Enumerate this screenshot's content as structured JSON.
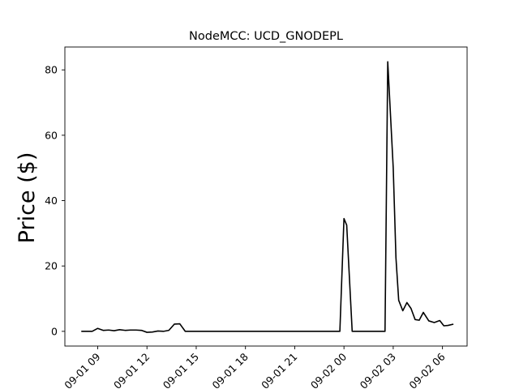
{
  "chart_data": {
    "type": "line",
    "title": "NodeMCC: UCD_GNODEPL",
    "xlabel": "",
    "ylabel": "Price ($)",
    "xlim": [
      "2019-09-01 07:00",
      "2019-09-02 07:30"
    ],
    "ylim": [
      -4.5,
      87
    ],
    "yticks": [
      0,
      20,
      40,
      60,
      80
    ],
    "xticks": [
      {
        "at": "2019-09-01 09:00",
        "label": "09-01 09"
      },
      {
        "at": "2019-09-01 12:00",
        "label": "09-01 12"
      },
      {
        "at": "2019-09-01 15:00",
        "label": "09-01 15"
      },
      {
        "at": "2019-09-01 18:00",
        "label": "09-01 18"
      },
      {
        "at": "2019-09-01 21:00",
        "label": "09-01 21"
      },
      {
        "at": "2019-09-02 00:00",
        "label": "09-02 00"
      },
      {
        "at": "2019-09-02 03:00",
        "label": "09-02 03"
      },
      {
        "at": "2019-09-02 06:00",
        "label": "09-02 06"
      }
    ],
    "grid": false,
    "legend": "none",
    "line_color": "#000000",
    "series": [
      {
        "x": [
          "2019-09-01 08:00",
          "2019-09-01 08:20",
          "2019-09-01 08:40",
          "2019-09-01 09:00",
          "2019-09-01 09:20",
          "2019-09-01 09:40",
          "2019-09-01 10:00",
          "2019-09-01 10:20",
          "2019-09-01 10:40",
          "2019-09-01 11:00",
          "2019-09-01 11:20",
          "2019-09-01 11:40",
          "2019-09-01 12:00",
          "2019-09-01 12:20",
          "2019-09-01 12:40",
          "2019-09-01 13:00",
          "2019-09-01 13:20",
          "2019-09-01 13:40",
          "2019-09-01 14:00",
          "2019-09-01 14:20",
          "2019-09-01 14:40",
          "2019-09-01 15:00",
          "2019-09-01 18:00",
          "2019-09-01 21:00",
          "2019-09-01 23:45",
          "2019-09-02 00:00",
          "2019-09-02 00:10",
          "2019-09-02 00:30",
          "2019-09-02 01:00",
          "2019-09-02 01:30",
          "2019-09-02 02:00",
          "2019-09-02 02:30",
          "2019-09-02 02:40",
          "2019-09-02 03:00",
          "2019-09-02 03:10",
          "2019-09-02 03:20",
          "2019-09-02 03:35",
          "2019-09-02 03:50",
          "2019-09-02 04:05",
          "2019-09-02 04:20",
          "2019-09-02 04:35",
          "2019-09-02 04:50",
          "2019-09-02 05:10",
          "2019-09-02 05:30",
          "2019-09-02 05:50",
          "2019-09-02 06:05",
          "2019-09-02 06:20",
          "2019-09-02 06:40"
        ],
        "y": [
          0,
          0,
          0,
          0.9,
          0.3,
          0.4,
          0.2,
          0.5,
          0.3,
          0.4,
          0.4,
          0.3,
          -0.3,
          -0.2,
          0.1,
          0.0,
          0.3,
          2.2,
          2.3,
          0,
          0,
          0,
          0,
          0,
          0,
          34.5,
          32.5,
          0,
          0,
          0,
          0,
          0,
          82.5,
          50.0,
          22.5,
          9.5,
          6.3,
          8.8,
          7.0,
          3.6,
          3.4,
          5.8,
          3.2,
          2.7,
          3.3,
          1.7,
          1.8,
          2.2
        ]
      }
    ]
  }
}
